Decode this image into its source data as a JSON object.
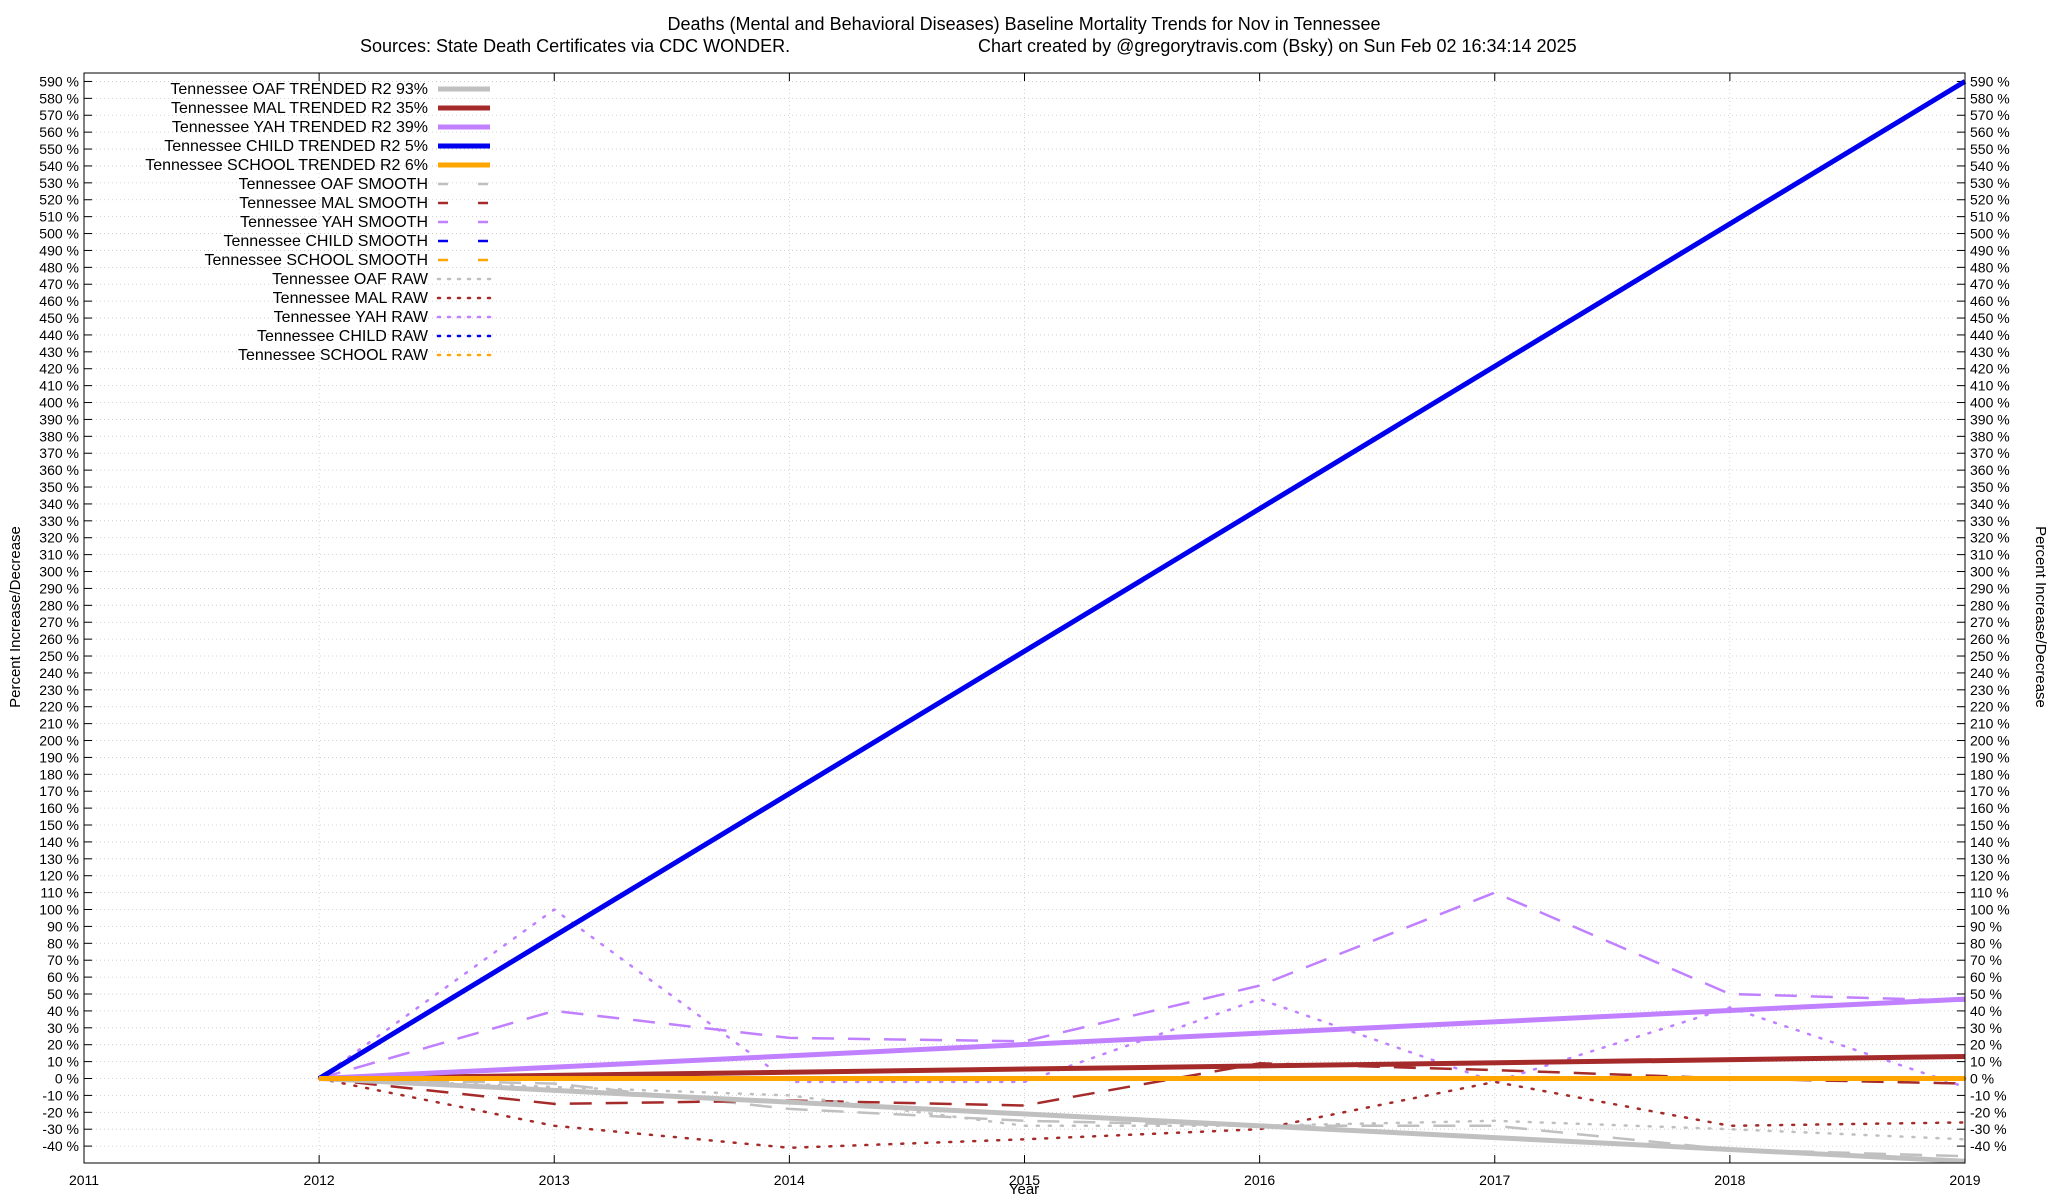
{
  "chart_data": {
    "type": "line",
    "title": "Deaths (Mental and Behavioral Diseases)  Baseline Mortality Trends for Nov in Tennessee",
    "subtitle_left": "Sources: State Death Certificates via CDC WONDER.",
    "subtitle_right": "Chart created by @gregorytravis.com (Bsky) on Sun Feb 02 16:34:14 2025",
    "xlabel": "Year",
    "ylabel_left": "Percent Increase/Decrease",
    "ylabel_right": "Percent Increase/Decrease",
    "xlim": [
      2011,
      2019
    ],
    "ylim": [
      -50,
      595
    ],
    "x_ticks": [
      2011,
      2012,
      2013,
      2014,
      2015,
      2016,
      2017,
      2018,
      2019
    ],
    "y_tick_start": -40,
    "y_tick_end": 590,
    "y_tick_step": 10,
    "y_tick_suffix": " %",
    "grid": true,
    "legend_position": "top-left",
    "series": [
      {
        "name": "Tennessee OAF TRENDED R2  93%",
        "style": "trend",
        "color": "#c0c0c0",
        "x": [
          2012,
          2019
        ],
        "y": [
          0,
          -49
        ]
      },
      {
        "name": "Tennessee MAL TRENDED R2  35%",
        "style": "trend",
        "color": "#a52a2a",
        "x": [
          2012,
          2019
        ],
        "y": [
          0,
          13
        ]
      },
      {
        "name": "Tennessee YAH TRENDED R2  39%",
        "style": "trend",
        "color": "#c080ff",
        "x": [
          2012,
          2019
        ],
        "y": [
          0,
          47
        ]
      },
      {
        "name": "Tennessee CHILD TRENDED R2   5%",
        "style": "trend",
        "color": "#0000ee",
        "x": [
          2012,
          2019
        ],
        "y": [
          0,
          590
        ]
      },
      {
        "name": "Tennessee SCHOOL TRENDED R2   6%",
        "style": "trend",
        "color": "#ffa500",
        "x": [
          2012,
          2019
        ],
        "y": [
          0,
          0
        ]
      },
      {
        "name": "Tennessee OAF SMOOTH",
        "style": "smooth",
        "color": "#c0c0c0",
        "x": [
          2012,
          2013,
          2014,
          2015,
          2016,
          2017,
          2018,
          2019
        ],
        "y": [
          0,
          -3,
          -18,
          -25,
          -28,
          -28,
          -42,
          -46
        ]
      },
      {
        "name": "Tennessee MAL SMOOTH",
        "style": "smooth",
        "color": "#a52a2a",
        "x": [
          2012,
          2013,
          2014,
          2015,
          2016,
          2017,
          2018,
          2019
        ],
        "y": [
          0,
          -15,
          -13,
          -16,
          9,
          5,
          0,
          -3
        ]
      },
      {
        "name": "Tennessee YAH SMOOTH",
        "style": "smooth",
        "color": "#c080ff",
        "x": [
          2012,
          2013,
          2014,
          2015,
          2016,
          2017,
          2018,
          2019
        ],
        "y": [
          0,
          40,
          24,
          22,
          55,
          110,
          50,
          46
        ]
      },
      {
        "name": "Tennessee CHILD SMOOTH",
        "style": "smooth",
        "color": "#0000ee",
        "x": [
          2012,
          2019
        ],
        "y": [
          0,
          0
        ]
      },
      {
        "name": "Tennessee SCHOOL SMOOTH",
        "style": "smooth",
        "color": "#ffa500",
        "x": [
          2012,
          2019
        ],
        "y": [
          0,
          0
        ]
      },
      {
        "name": "Tennessee OAF RAW",
        "style": "raw",
        "color": "#c0c0c0",
        "x": [
          2012,
          2013,
          2014,
          2015,
          2016,
          2017,
          2018,
          2019
        ],
        "y": [
          0,
          -5,
          -10,
          -28,
          -28,
          -25,
          -30,
          -36
        ]
      },
      {
        "name": "Tennessee MAL RAW",
        "style": "raw",
        "color": "#a52a2a",
        "x": [
          2012,
          2013,
          2014,
          2015,
          2016,
          2017,
          2018,
          2019
        ],
        "y": [
          0,
          -28,
          -41,
          -36,
          -30,
          -2,
          -28,
          -26
        ]
      },
      {
        "name": "Tennessee YAH RAW",
        "style": "raw",
        "color": "#c080ff",
        "x": [
          2012,
          2013,
          2014,
          2015,
          2016,
          2017,
          2018,
          2019
        ],
        "y": [
          0,
          100,
          -2,
          -2,
          47,
          -2,
          42,
          -5
        ]
      },
      {
        "name": "Tennessee CHILD RAW",
        "style": "raw",
        "color": "#0000ee",
        "x": [
          2012,
          2019
        ],
        "y": [
          0,
          0
        ]
      },
      {
        "name": "Tennessee SCHOOL RAW",
        "style": "raw",
        "color": "#ffa500",
        "x": [
          2012,
          2019
        ],
        "y": [
          0,
          0
        ]
      }
    ]
  }
}
